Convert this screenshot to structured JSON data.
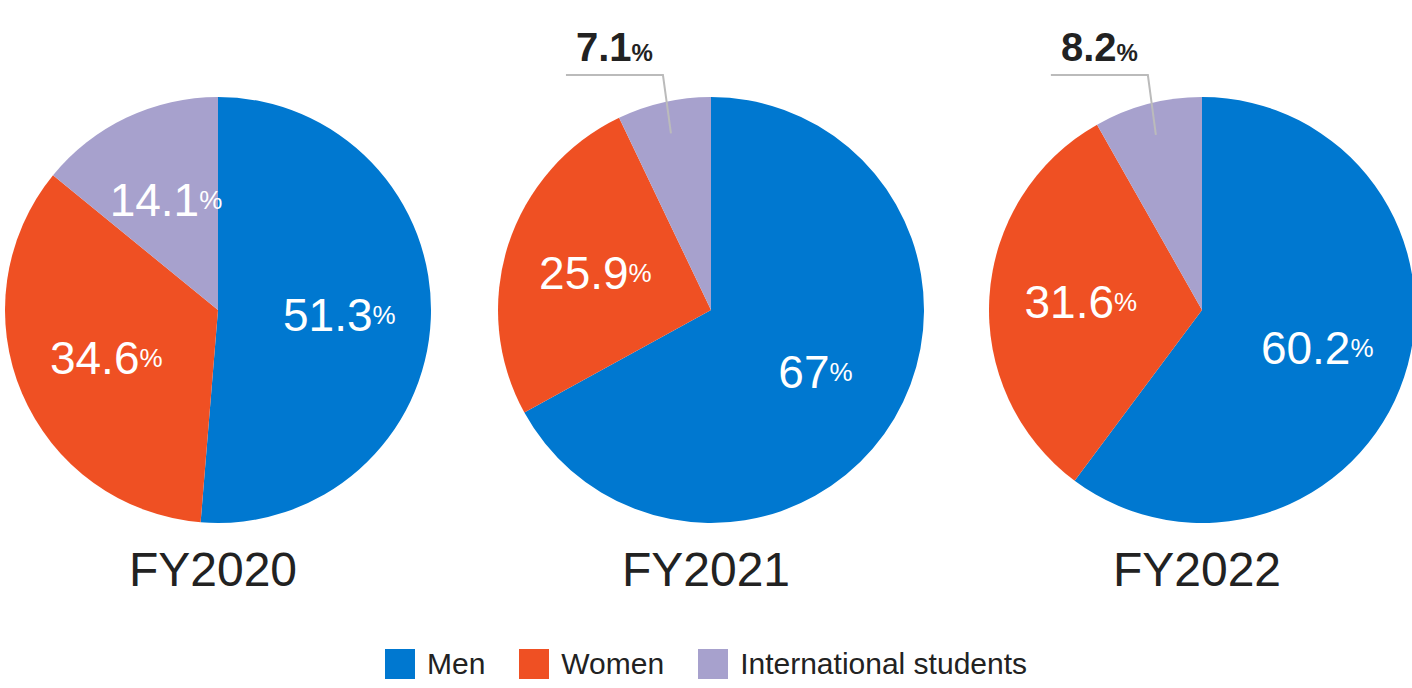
{
  "chart_data": [
    {
      "type": "pie",
      "title": "FY2020",
      "categories": [
        "Men",
        "Women",
        "International students"
      ],
      "values": [
        51.3,
        34.6,
        14.1
      ],
      "value_labels": [
        "51.3%",
        "34.6%",
        "14.1%"
      ],
      "colors": [
        "#0078d0",
        "#ef5023",
        "#a7a1cd"
      ],
      "data_labels": true,
      "legend": "bottom"
    },
    {
      "type": "pie",
      "title": "FY2021",
      "categories": [
        "Men",
        "Women",
        "International students"
      ],
      "values": [
        67,
        25.9,
        7.1
      ],
      "value_labels": [
        "67%",
        "25.9%",
        "7.1%"
      ],
      "colors": [
        "#0078d0",
        "#ef5023",
        "#a7a1cd"
      ],
      "data_labels": true,
      "legend": "bottom"
    },
    {
      "type": "pie",
      "title": "FY2022",
      "categories": [
        "Men",
        "Women",
        "International students"
      ],
      "values": [
        60.2,
        31.6,
        8.2
      ],
      "value_labels": [
        "60.2%",
        "31.6%",
        "8.2%"
      ],
      "colors": [
        "#0078d0",
        "#ef5023",
        "#a7a1cd"
      ],
      "data_labels": true,
      "legend": "bottom"
    }
  ]
}
